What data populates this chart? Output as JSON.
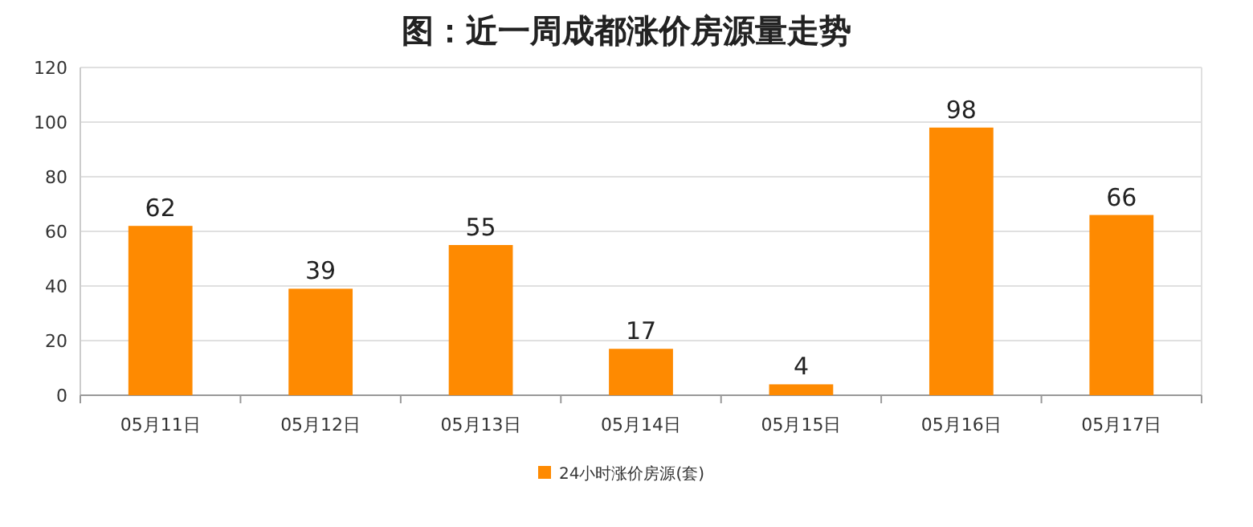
{
  "chart_data": {
    "type": "bar",
    "title": "图：近一周成都涨价房源量走势",
    "categories": [
      "05月11日",
      "05月12日",
      "05月13日",
      "05月14日",
      "05月15日",
      "05月16日",
      "05月17日"
    ],
    "series": [
      {
        "name": "24小时涨价房源(套)",
        "color": "#fe8a01",
        "values": [
          62,
          39,
          55,
          17,
          4,
          98,
          66
        ]
      }
    ],
    "ylim": [
      0,
      120
    ],
    "yticks": [
      0,
      20,
      40,
      60,
      80,
      100,
      120
    ],
    "grid": "y",
    "legend": "bottom",
    "data_labels": true
  }
}
